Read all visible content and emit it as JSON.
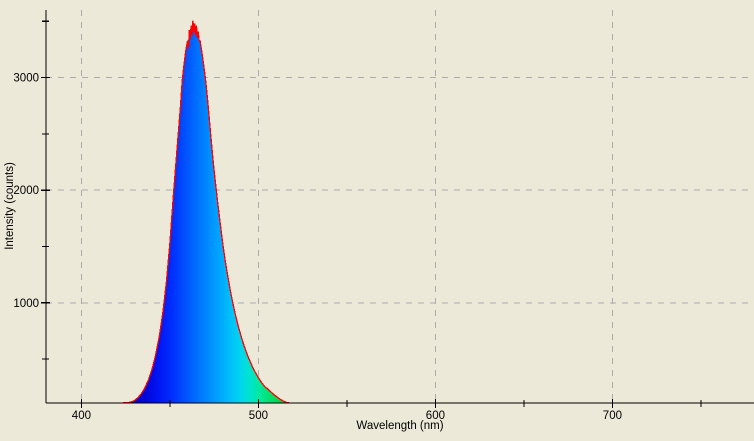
{
  "chart_data": {
    "type": "area",
    "title": "",
    "xlabel": "Wavelength (nm)",
    "ylabel": "Intensity (counts)",
    "xlim": [
      380,
      780
    ],
    "ylim": [
      110,
      3600
    ],
    "x_major_ticks": [
      400,
      500,
      600,
      700
    ],
    "x_minor_ticks": [
      450,
      550,
      650,
      750
    ],
    "y_major_ticks": [
      1000,
      2000,
      3000
    ],
    "y_minor_ticks": [
      500,
      1500,
      2500,
      3500
    ],
    "grid": "dashed gray lines at major ticks only, drawn under the spectrum fill",
    "legend": "none",
    "peak": {
      "wavelength_nm": 463,
      "intensity_counts": 3505
    },
    "baseline_counts": 110,
    "colors": {
      "background": "#ECE9D8",
      "grid": "#ABABAB",
      "axis": "#000000",
      "curve": "#FF0000",
      "text": "#000000"
    },
    "fill_gradient": [
      {
        "nm": 433,
        "color": "#0000CE"
      },
      {
        "nm": 443,
        "color": "#0013F2"
      },
      {
        "nm": 452,
        "color": "#0032FF"
      },
      {
        "nm": 460,
        "color": "#0057FF"
      },
      {
        "nm": 468,
        "color": "#007BFF"
      },
      {
        "nm": 476,
        "color": "#009DFF"
      },
      {
        "nm": 484,
        "color": "#00BFFA"
      },
      {
        "nm": 490,
        "color": "#00D6EE"
      },
      {
        "nm": 496,
        "color": "#00E5C6"
      },
      {
        "nm": 501,
        "color": "#00E89C"
      },
      {
        "nm": 506,
        "color": "#00E170"
      },
      {
        "nm": 511,
        "color": "#00D853"
      },
      {
        "nm": 517,
        "color": "#00CC42"
      }
    ],
    "series": [
      {
        "name": "spectrum",
        "points": [
          [
            380,
            110
          ],
          [
            420,
            110
          ],
          [
            424,
            111
          ],
          [
            426,
            113
          ],
          [
            428,
            118
          ],
          [
            430,
            132
          ],
          [
            432,
            158
          ],
          [
            434,
            196
          ],
          [
            436,
            248
          ],
          [
            438,
            320
          ],
          [
            440,
            415
          ],
          [
            442,
            540
          ],
          [
            444,
            700
          ],
          [
            446,
            910
          ],
          [
            448,
            1180
          ],
          [
            450,
            1530
          ],
          [
            452,
            1960
          ],
          [
            454,
            2360
          ],
          [
            456,
            2750
          ],
          [
            457,
            2980
          ],
          [
            458,
            3120
          ],
          [
            459,
            3240
          ],
          [
            460,
            3330
          ],
          [
            460.5,
            3260
          ],
          [
            461,
            3420
          ],
          [
            461.5,
            3340
          ],
          [
            462,
            3460
          ],
          [
            462.5,
            3370
          ],
          [
            463,
            3505
          ],
          [
            463.5,
            3410
          ],
          [
            464,
            3480
          ],
          [
            464.5,
            3380
          ],
          [
            465,
            3460
          ],
          [
            465.5,
            3350
          ],
          [
            466,
            3410
          ],
          [
            466.5,
            3330
          ],
          [
            467,
            3330
          ],
          [
            468,
            3230
          ],
          [
            469,
            3120
          ],
          [
            470,
            3000
          ],
          [
            471,
            2850
          ],
          [
            472,
            2680
          ],
          [
            473,
            2500
          ],
          [
            474,
            2330
          ],
          [
            475,
            2170
          ],
          [
            476,
            2030
          ],
          [
            477,
            1890
          ],
          [
            478,
            1760
          ],
          [
            479,
            1630
          ],
          [
            480,
            1510
          ],
          [
            481,
            1400
          ],
          [
            482,
            1300
          ],
          [
            483,
            1210
          ],
          [
            484,
            1120
          ],
          [
            485,
            1040
          ],
          [
            486,
            965
          ],
          [
            487,
            895
          ],
          [
            488,
            830
          ],
          [
            489,
            770
          ],
          [
            490,
            715
          ],
          [
            491,
            662
          ],
          [
            492,
            614
          ],
          [
            493,
            570
          ],
          [
            494,
            528
          ],
          [
            495,
            490
          ],
          [
            496,
            454
          ],
          [
            497,
            420
          ],
          [
            498,
            390
          ],
          [
            499,
            361
          ],
          [
            500,
            335
          ],
          [
            501,
            310
          ],
          [
            502,
            287
          ],
          [
            503,
            266
          ],
          [
            504,
            248
          ],
          [
            505,
            240
          ],
          [
            506,
            224
          ],
          [
            507,
            209
          ],
          [
            508,
            195
          ],
          [
            509,
            182
          ],
          [
            510,
            170
          ],
          [
            511,
            158
          ],
          [
            512,
            147
          ],
          [
            513,
            137
          ],
          [
            514,
            128
          ],
          [
            515,
            121
          ],
          [
            516,
            114
          ],
          [
            517,
            111
          ],
          [
            518,
            110
          ],
          [
            780,
            110
          ]
        ]
      }
    ]
  }
}
